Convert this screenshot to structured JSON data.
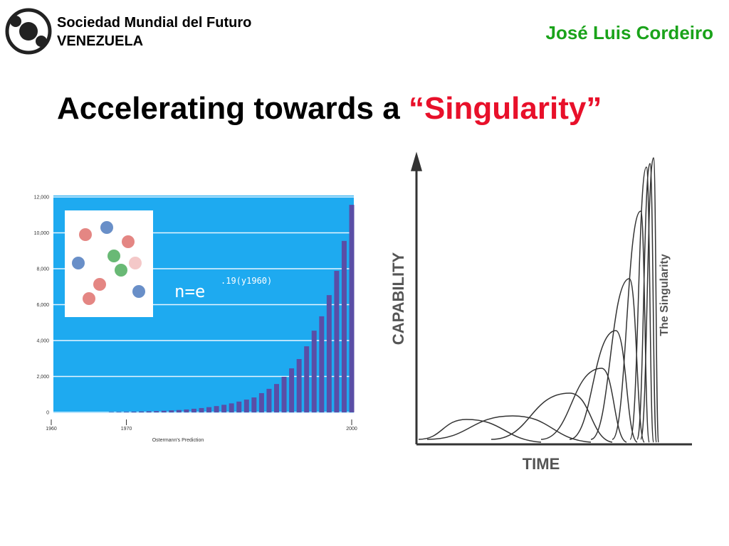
{
  "header": {
    "org_line1": "Sociedad Mundial del Futuro",
    "org_line2": "VENEZUELA",
    "author": "José Luis Cordeiro"
  },
  "title": {
    "text": "Accelerating towards a ",
    "highlight": "“Singularity”"
  },
  "chart_data": [
    {
      "type": "bar",
      "color": "#5a4ea6",
      "background": "#1eaaf0",
      "x_label": "Ostermann's Prediction",
      "formula": {
        "base": "n=e",
        "exponent": ".19(y1960)"
      },
      "x": [
        1968,
        1969,
        1970,
        1971,
        1972,
        1973,
        1974,
        1975,
        1976,
        1977,
        1978,
        1979,
        1980,
        1981,
        1982,
        1983,
        1984,
        1985,
        1986,
        1987,
        1988,
        1989,
        1990,
        1991,
        1992,
        1993,
        1994,
        1995,
        1996,
        1997,
        1998,
        1999,
        2000
      ],
      "values": [
        20,
        25,
        30,
        40,
        50,
        60,
        70,
        90,
        110,
        130,
        160,
        200,
        240,
        290,
        350,
        420,
        500,
        600,
        710,
        830,
        1070,
        1310,
        1580,
        1980,
        2450,
        2970,
        3680,
        4550,
        5350,
        6530,
        7880,
        9550,
        11560
      ],
      "xlim": [
        1960,
        2000
      ],
      "xticks": [
        1960,
        1970,
        2000
      ],
      "ylim": [
        0,
        12000
      ],
      "yticks": [
        0,
        {
          "value": 2000,
          "label": "2,000"
        },
        {
          "value": 4000,
          "label": "4,000"
        },
        {
          "value": 6000,
          "label": "6,000"
        },
        {
          "value": 8000,
          "label": "8,000"
        },
        {
          "value": 10000,
          "label": "10,000"
        },
        {
          "value": 12000,
          "label": "12,000"
        }
      ],
      "grid": true
    }
  ],
  "diagram": {
    "y_label": "CAPABILITY",
    "x_label": "TIME",
    "annotation": "The Singularity"
  }
}
